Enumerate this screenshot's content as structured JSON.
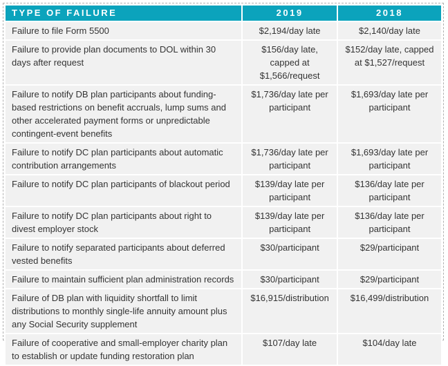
{
  "colors": {
    "header_bg": "#0ba3bc",
    "header_text": "#ffffff",
    "row_bg": "#f1f1f1",
    "body_text": "#333333",
    "border": "#b0b0b0"
  },
  "table": {
    "headers": [
      "TYPE OF FAILURE",
      "2019",
      "2018"
    ],
    "rows": [
      {
        "failure": "Failure to file Form 5500",
        "y2019": "$2,194/day late",
        "y2018": "$2,140/day late"
      },
      {
        "failure": "Failure to provide plan documents to DOL within 30 days after request",
        "y2019": "$156/day late, capped at $1,566/request",
        "y2018": "$152/day late, capped at $1,527/request"
      },
      {
        "failure": "Failure to notify DB plan participants about funding-based restrictions on benefit accruals, lump sums and other accelerated payment forms or unpredictable contingent-event benefits",
        "y2019": "$1,736/day late per participant",
        "y2018": "$1,693/day late per participant"
      },
      {
        "failure": "Failure to notify DC plan participants about automatic contribution arrangements",
        "y2019": "$1,736/day late per participant",
        "y2018": "$1,693/day late per participant"
      },
      {
        "failure": "Failure to notify DC plan participants of blackout period",
        "y2019": "$139/day late per participant",
        "y2018": "$136/day late per participant"
      },
      {
        "failure": "Failure to notify DC plan participants about right to divest employer stock",
        "y2019": "$139/day late per participant",
        "y2018": "$136/day late per participant"
      },
      {
        "failure": "Failure to notify separated participants about deferred vested benefits",
        "y2019": "$30/participant",
        "y2018": "$29/participant"
      },
      {
        "failure": "Failure to maintain sufficient plan administration records",
        "y2019": "$30/participant",
        "y2018": "$29/participant"
      },
      {
        "failure": "Failure of DB plan with liquidity shortfall to limit distributions to monthly single-life annuity amount plus any Social Security supplement",
        "y2019": "$16,915/distribution",
        "y2018": "$16,499/distribution"
      },
      {
        "failure": "Failure of cooperative and small-employer charity plan to establish or update funding restoration plan",
        "y2019": "$107/day late",
        "y2018": "$104/day late"
      }
    ]
  }
}
